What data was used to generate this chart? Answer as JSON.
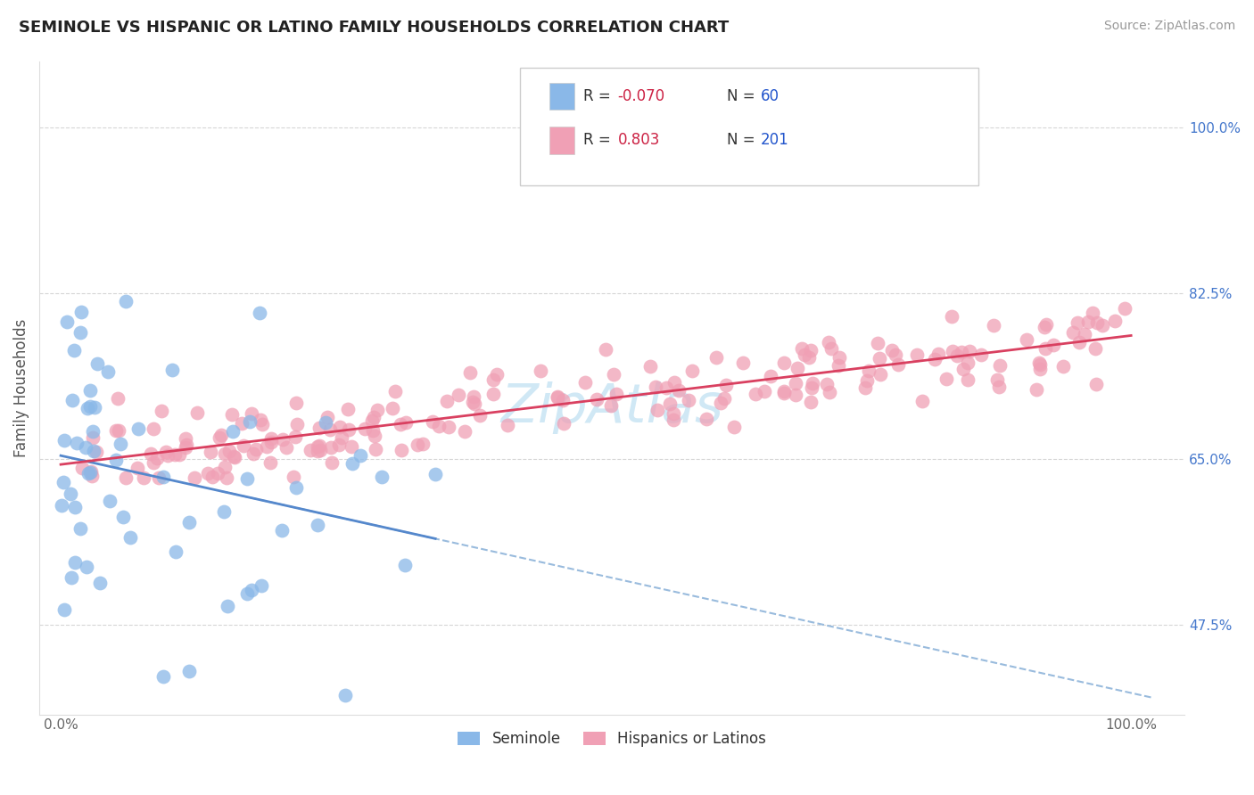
{
  "title": "SEMINOLE VS HISPANIC OR LATINO FAMILY HOUSEHOLDS CORRELATION CHART",
  "source_text": "Source: ZipAtlas.com",
  "ylabel": "Family Households",
  "y_ticks": [
    0.475,
    0.65,
    0.825,
    1.0
  ],
  "y_tick_labels": [
    "47.5%",
    "65.0%",
    "82.5%",
    "100.0%"
  ],
  "xlim": [
    -0.02,
    1.05
  ],
  "ylim": [
    0.38,
    1.07
  ],
  "blue_R": "-0.070",
  "blue_N": "60",
  "pink_R": "0.803",
  "pink_N": "201",
  "legend_label_blue": "Seminole",
  "legend_label_pink": "Hispanics or Latinos",
  "blue_color": "#8ab8e8",
  "pink_color": "#f0a0b5",
  "blue_line_color": "#5588cc",
  "pink_line_color": "#d94060",
  "dashed_line_color": "#99bbdd",
  "watermark_color": "#d0e8f5",
  "grid_color": "#cccccc",
  "title_color": "#222222",
  "source_color": "#999999",
  "ylabel_color": "#555555",
  "ytick_color": "#4477cc",
  "xtick_color": "#666666"
}
